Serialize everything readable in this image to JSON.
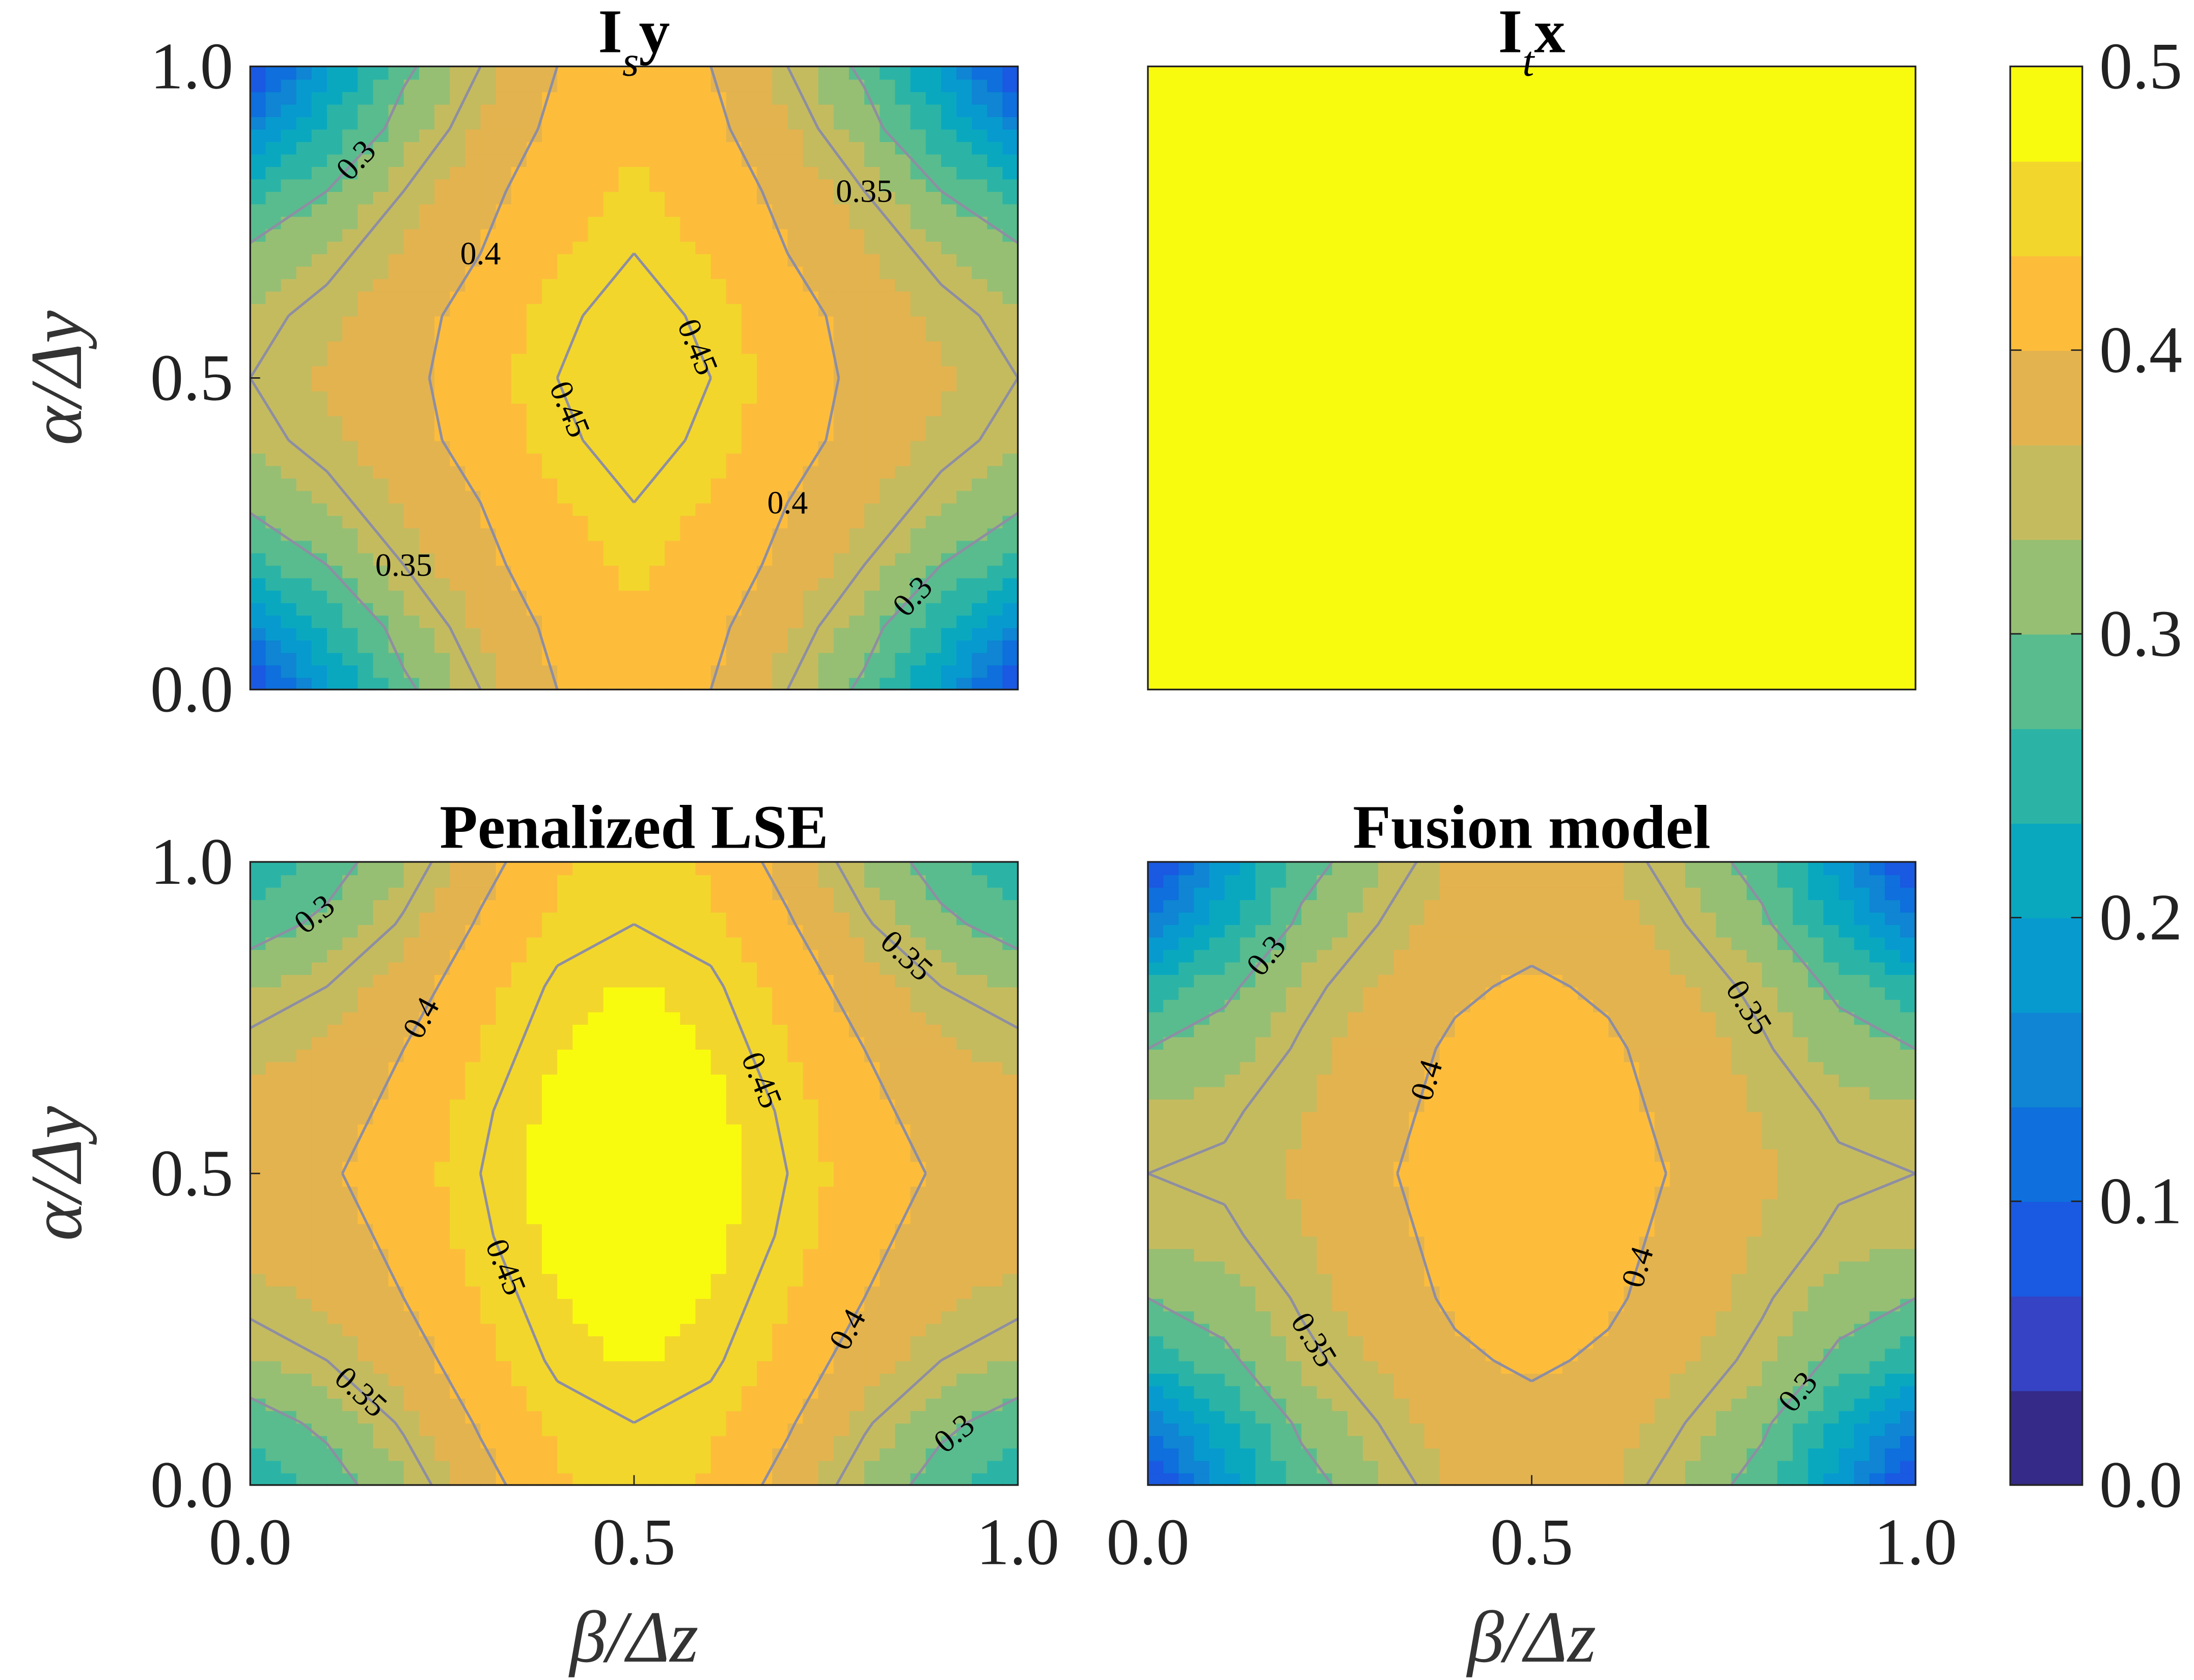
{
  "colormap": {
    "clim": [
      0,
      0.5
    ],
    "colors": [
      "#352a87",
      "#3543c4",
      "#1a59e1",
      "#0e6fdd",
      "#0f85d3",
      "#079acf",
      "#0aa8bf",
      "#2bb4a6",
      "#59bc8e",
      "#96bf73",
      "#c4bb5f",
      "#e3b34f",
      "#fdbd3b",
      "#f2d62c",
      "#f9fb0e"
    ],
    "ticks": [
      {
        "value": 0,
        "label": "0.0"
      },
      {
        "value": 0.1,
        "label": "0.1"
      },
      {
        "value": 0.2,
        "label": "0.2"
      },
      {
        "value": 0.3,
        "label": "0.3"
      },
      {
        "value": 0.4,
        "label": "0.4"
      },
      {
        "value": 0.5,
        "label": "0.5"
      }
    ]
  },
  "chart_data": [
    {
      "type": "contour",
      "title": [
        {
          "text": "I"
        },
        {
          "text": "s",
          "sub": true
        },
        {
          "text": "y"
        }
      ],
      "ylabel": "α/Δy",
      "x": [
        0,
        0.1,
        0.2,
        0.3,
        0.4,
        0.5,
        0.6,
        0.7,
        0.8,
        0.9,
        1
      ],
      "y": [
        0,
        0.1,
        0.2,
        0.3,
        0.4,
        0.5,
        0.6,
        0.7,
        0.8,
        0.9,
        1
      ],
      "z": [
        [
          0.05,
          0.19,
          0.29,
          0.35,
          0.4,
          0.42,
          0.4,
          0.35,
          0.29,
          0.19,
          0.05
        ],
        [
          0.15,
          0.24,
          0.32,
          0.37,
          0.41,
          0.43,
          0.41,
          0.37,
          0.32,
          0.24,
          0.15
        ],
        [
          0.25,
          0.3,
          0.35,
          0.39,
          0.42,
          0.44,
          0.42,
          0.39,
          0.35,
          0.3,
          0.25
        ],
        [
          0.31,
          0.34,
          0.37,
          0.4,
          0.43,
          0.45,
          0.43,
          0.4,
          0.37,
          0.34,
          0.31
        ],
        [
          0.34,
          0.36,
          0.385,
          0.415,
          0.445,
          0.46,
          0.445,
          0.415,
          0.385,
          0.36,
          0.34
        ],
        [
          0.35,
          0.37,
          0.39,
          0.42,
          0.45,
          0.465,
          0.45,
          0.42,
          0.39,
          0.37,
          0.35
        ],
        [
          0.34,
          0.36,
          0.385,
          0.415,
          0.445,
          0.46,
          0.445,
          0.415,
          0.385,
          0.36,
          0.34
        ],
        [
          0.31,
          0.34,
          0.37,
          0.4,
          0.43,
          0.45,
          0.43,
          0.4,
          0.37,
          0.34,
          0.31
        ],
        [
          0.25,
          0.3,
          0.35,
          0.39,
          0.42,
          0.44,
          0.42,
          0.39,
          0.35,
          0.3,
          0.25
        ],
        [
          0.15,
          0.24,
          0.32,
          0.37,
          0.41,
          0.43,
          0.41,
          0.37,
          0.32,
          0.24,
          0.15
        ],
        [
          0.05,
          0.19,
          0.29,
          0.35,
          0.4,
          0.42,
          0.4,
          0.35,
          0.29,
          0.19,
          0.05
        ]
      ],
      "contour_levels": [
        0.3,
        0.35,
        0.4,
        0.45
      ],
      "contour_color": "#8e8ea2",
      "xlim": [
        0,
        1
      ],
      "ylim": [
        0,
        1
      ],
      "yticks": [
        {
          "value": 0,
          "label": "0.0"
        },
        {
          "value": 0.5,
          "label": "0.5"
        },
        {
          "value": 1,
          "label": "1.0"
        }
      ]
    },
    {
      "type": "contour",
      "title": [
        {
          "text": "I"
        },
        {
          "text": "t",
          "sub": true
        },
        {
          "text": "x"
        }
      ],
      "x": [
        0,
        1
      ],
      "y": [
        0,
        1
      ],
      "z": [
        [
          0.5,
          0.5
        ],
        [
          0.5,
          0.5
        ]
      ],
      "contour_levels": [
        0.3,
        0.35,
        0.4,
        0.45
      ],
      "contour_color": "#8e8ea2",
      "xlim": [
        0,
        1
      ],
      "ylim": [
        0,
        1
      ]
    },
    {
      "type": "contour",
      "title": [
        {
          "text": "Penalized LSE"
        }
      ],
      "xlabel": "β/Δz",
      "ylabel": "α/Δy",
      "x": [
        0,
        0.1,
        0.2,
        0.3,
        0.4,
        0.5,
        0.6,
        0.7,
        0.8,
        0.9,
        1
      ],
      "y": [
        0,
        0.1,
        0.2,
        0.3,
        0.4,
        0.5,
        0.6,
        0.7,
        0.8,
        0.9,
        1
      ],
      "z": [
        [
          0.24,
          0.28,
          0.33,
          0.385,
          0.43,
          0.44,
          0.43,
          0.385,
          0.33,
          0.28,
          0.24
        ],
        [
          0.28,
          0.31,
          0.355,
          0.405,
          0.44,
          0.45,
          0.44,
          0.405,
          0.355,
          0.31,
          0.28
        ],
        [
          0.33,
          0.35,
          0.38,
          0.425,
          0.455,
          0.47,
          0.455,
          0.425,
          0.38,
          0.35,
          0.33
        ],
        [
          0.36,
          0.37,
          0.4,
          0.435,
          0.465,
          0.485,
          0.465,
          0.435,
          0.4,
          0.37,
          0.36
        ],
        [
          0.375,
          0.385,
          0.41,
          0.445,
          0.475,
          0.495,
          0.475,
          0.445,
          0.41,
          0.385,
          0.375
        ],
        [
          0.38,
          0.395,
          0.42,
          0.45,
          0.48,
          0.5,
          0.48,
          0.45,
          0.42,
          0.395,
          0.38
        ],
        [
          0.375,
          0.385,
          0.41,
          0.445,
          0.475,
          0.495,
          0.475,
          0.445,
          0.41,
          0.385,
          0.375
        ],
        [
          0.36,
          0.37,
          0.4,
          0.435,
          0.465,
          0.485,
          0.465,
          0.435,
          0.4,
          0.37,
          0.36
        ],
        [
          0.33,
          0.35,
          0.38,
          0.425,
          0.455,
          0.47,
          0.455,
          0.425,
          0.38,
          0.35,
          0.33
        ],
        [
          0.28,
          0.31,
          0.355,
          0.405,
          0.44,
          0.45,
          0.44,
          0.405,
          0.355,
          0.31,
          0.28
        ],
        [
          0.24,
          0.28,
          0.33,
          0.385,
          0.43,
          0.44,
          0.43,
          0.385,
          0.33,
          0.28,
          0.24
        ]
      ],
      "contour_levels": [
        0.3,
        0.35,
        0.4,
        0.45
      ],
      "contour_color": "#8e8ea2",
      "xlim": [
        0,
        1
      ],
      "ylim": [
        0,
        1
      ],
      "xticks": [
        {
          "value": 0,
          "label": "0.0"
        },
        {
          "value": 0.5,
          "label": "0.5"
        },
        {
          "value": 1,
          "label": "1.0"
        }
      ],
      "yticks": [
        {
          "value": 0,
          "label": "0.0"
        },
        {
          "value": 0.5,
          "label": "0.5"
        },
        {
          "value": 1,
          "label": "1.0"
        }
      ]
    },
    {
      "type": "contour",
      "title": [
        {
          "text": "Fusion model"
        }
      ],
      "xlabel": "β/Δz",
      "x": [
        0,
        0.1,
        0.2,
        0.3,
        0.4,
        0.5,
        0.6,
        0.7,
        0.8,
        0.9,
        1
      ],
      "y": [
        0,
        0.1,
        0.2,
        0.3,
        0.4,
        0.5,
        0.6,
        0.7,
        0.8,
        0.9,
        1
      ],
      "z": [
        [
          0.05,
          0.18,
          0.28,
          0.33,
          0.37,
          0.38,
          0.37,
          0.33,
          0.28,
          0.18,
          0.05
        ],
        [
          0.14,
          0.23,
          0.31,
          0.35,
          0.38,
          0.39,
          0.38,
          0.35,
          0.31,
          0.23,
          0.14
        ],
        [
          0.24,
          0.29,
          0.34,
          0.37,
          0.395,
          0.405,
          0.395,
          0.37,
          0.34,
          0.29,
          0.24
        ],
        [
          0.3,
          0.32,
          0.355,
          0.385,
          0.405,
          0.415,
          0.405,
          0.385,
          0.355,
          0.32,
          0.3
        ],
        [
          0.34,
          0.345,
          0.365,
          0.39,
          0.41,
          0.42,
          0.41,
          0.39,
          0.365,
          0.345,
          0.34
        ],
        [
          0.35,
          0.355,
          0.37,
          0.395,
          0.415,
          0.425,
          0.415,
          0.395,
          0.37,
          0.355,
          0.35
        ],
        [
          0.34,
          0.345,
          0.365,
          0.39,
          0.41,
          0.42,
          0.41,
          0.39,
          0.365,
          0.345,
          0.34
        ],
        [
          0.3,
          0.32,
          0.355,
          0.385,
          0.405,
          0.415,
          0.405,
          0.385,
          0.355,
          0.32,
          0.3
        ],
        [
          0.24,
          0.29,
          0.34,
          0.37,
          0.395,
          0.405,
          0.395,
          0.37,
          0.34,
          0.29,
          0.24
        ],
        [
          0.14,
          0.23,
          0.31,
          0.35,
          0.38,
          0.39,
          0.38,
          0.35,
          0.31,
          0.23,
          0.14
        ],
        [
          0.05,
          0.18,
          0.28,
          0.33,
          0.37,
          0.38,
          0.37,
          0.33,
          0.28,
          0.18,
          0.05
        ]
      ],
      "contour_levels": [
        0.3,
        0.35,
        0.4,
        0.45
      ],
      "contour_color": "#8e8ea2",
      "xlim": [
        0,
        1
      ],
      "ylim": [
        0,
        1
      ],
      "xticks": [
        {
          "value": 0,
          "label": "0.0"
        },
        {
          "value": 0.5,
          "label": "0.5"
        },
        {
          "value": 1,
          "label": "1.0"
        }
      ]
    }
  ]
}
